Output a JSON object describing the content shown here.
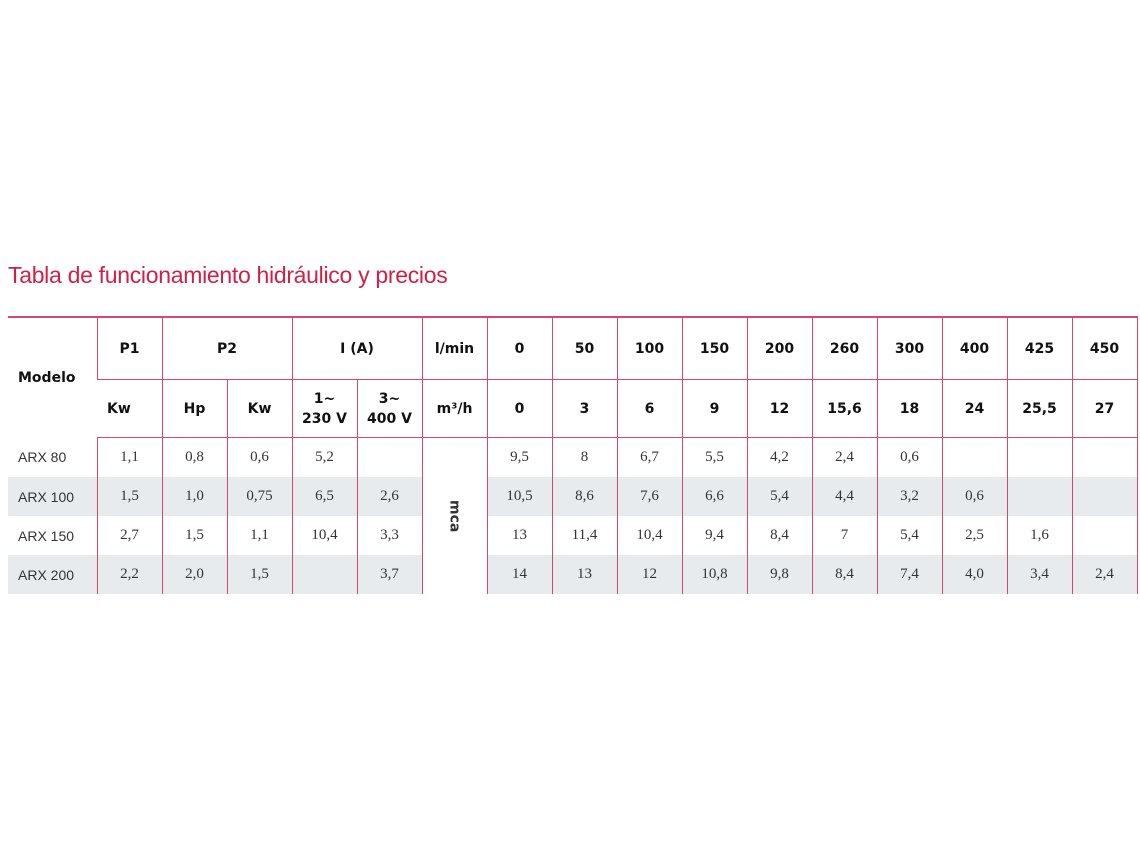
{
  "header": {
    "title": "Tabla de funcionamiento hidráulico y precios"
  },
  "table": {
    "model_header": "Modelo",
    "top": [
      "P1",
      "P2",
      "I (A)",
      "l/min",
      "0",
      "50",
      "100",
      "150",
      "200",
      "260",
      "300",
      "400",
      "425",
      "450"
    ],
    "sub": [
      "Kw",
      "Hp",
      "Kw",
      "1~\n230 V",
      "3~\n400 V",
      "m³/h",
      "0",
      "3",
      "6",
      "9",
      "12",
      "15,6",
      "18",
      "24",
      "25,5",
      "27"
    ],
    "unit": "mca",
    "rows": [
      [
        "ARX 80",
        "1,1",
        "0,8",
        "0,6",
        "5,2",
        null,
        "9,5",
        "8",
        "6,7",
        "5,5",
        "4,2",
        "2,4",
        "0,6",
        null,
        null,
        null
      ],
      [
        "ARX 100",
        "1,5",
        "1,0",
        "0,75",
        "6,5",
        "2,6",
        "10,5",
        "8,6",
        "7,6",
        "6,6",
        "5,4",
        "4,4",
        "3,2",
        "0,6",
        null,
        null
      ],
      [
        "ARX 150",
        "2,7",
        "1,5",
        "1,1",
        "10,4",
        "3,3",
        "13",
        "11,4",
        "10,4",
        "9,4",
        "8,4",
        "7",
        "5,4",
        "2,5",
        "1,6",
        null
      ],
      [
        "ARX 200",
        "2,2",
        "2,0",
        "1,5",
        null,
        "3,7",
        "14",
        "13",
        "12",
        "10,8",
        "9,8",
        "8,4",
        "7,4",
        "4,0",
        "3,4",
        "2,4"
      ]
    ]
  }
}
